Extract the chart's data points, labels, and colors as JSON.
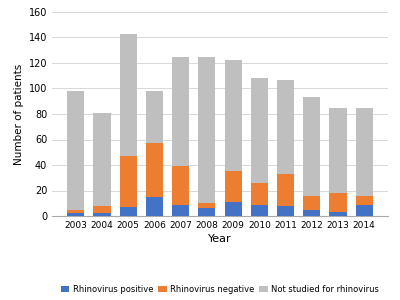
{
  "years": [
    2003,
    2004,
    2005,
    2006,
    2007,
    2008,
    2009,
    2010,
    2011,
    2012,
    2013,
    2014
  ],
  "rhinovirus_positive": [
    2,
    2,
    7,
    15,
    9,
    6,
    11,
    9,
    8,
    5,
    3,
    9
  ],
  "rhinovirus_negative": [
    3,
    6,
    40,
    42,
    30,
    4,
    24,
    17,
    25,
    11,
    15,
    7
  ],
  "not_studied": [
    93,
    73,
    96,
    41,
    86,
    115,
    87,
    82,
    74,
    77,
    67,
    69
  ],
  "color_positive": "#4472c4",
  "color_negative": "#ed7d31",
  "color_not_studied": "#bfbfbf",
  "ylabel": "Number of patients",
  "xlabel": "Year",
  "ylim": [
    0,
    160
  ],
  "yticks": [
    0,
    20,
    40,
    60,
    80,
    100,
    120,
    140,
    160
  ],
  "legend_labels": [
    "Rhinovirus positive",
    "Rhinovirus negative",
    "Not studied for rhinovirus"
  ],
  "bg_color": "#ffffff"
}
